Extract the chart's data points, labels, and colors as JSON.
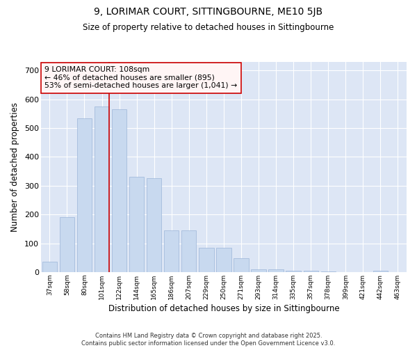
{
  "title1": "9, LORIMAR COURT, SITTINGBOURNE, ME10 5JB",
  "title2": "Size of property relative to detached houses in Sittingbourne",
  "xlabel": "Distribution of detached houses by size in Sittingbourne",
  "ylabel": "Number of detached properties",
  "categories": [
    "37sqm",
    "58sqm",
    "80sqm",
    "101sqm",
    "122sqm",
    "144sqm",
    "165sqm",
    "186sqm",
    "207sqm",
    "229sqm",
    "250sqm",
    "271sqm",
    "293sqm",
    "314sqm",
    "335sqm",
    "357sqm",
    "378sqm",
    "399sqm",
    "421sqm",
    "442sqm",
    "463sqm"
  ],
  "values": [
    35,
    190,
    535,
    575,
    565,
    330,
    325,
    145,
    145,
    85,
    85,
    48,
    10,
    10,
    5,
    5,
    3,
    0,
    0,
    5,
    0
  ],
  "bar_color": "#c8d9ef",
  "bar_edge_color": "#9ab5d8",
  "vline_color": "#cc0000",
  "annotation_text": "9 LORIMAR COURT: 108sqm\n← 46% of detached houses are smaller (895)\n53% of semi-detached houses are larger (1,041) →",
  "annotation_box_facecolor": "#fff5f5",
  "annotation_box_edgecolor": "#cc0000",
  "ylim": [
    0,
    730
  ],
  "yticks": [
    0,
    100,
    200,
    300,
    400,
    500,
    600,
    700
  ],
  "background_color": "#dde6f5",
  "grid_color": "#ffffff",
  "footer_text": "Contains HM Land Registry data © Crown copyright and database right 2025.\nContains public sector information licensed under the Open Government Licence v3.0.",
  "figsize": [
    6.0,
    5.0
  ],
  "dpi": 100
}
